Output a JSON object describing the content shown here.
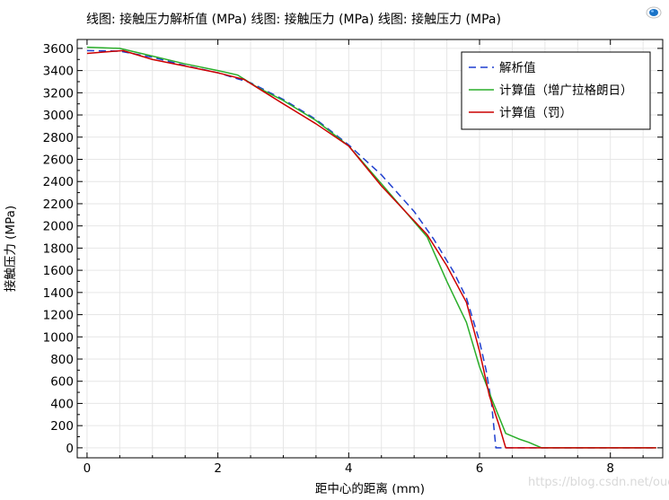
{
  "title": "线图: 接触压力解析值 (MPa)  线图: 接触压力 (MPa)  线图: 接触压力 (MPa)",
  "watermark": "https://blog.csdn.net/ouening",
  "colors": {
    "analytic": "#1f3fcf",
    "lagrange": "#2aae2a",
    "penalty": "#cc0000",
    "grid": "#e6e6e6",
    "logo": "#1a73c7"
  },
  "logo_icon": "comsol-logo-icon",
  "chart_data": {
    "type": "line",
    "title": "",
    "xlabel": "距中心的距离 (mm)",
    "ylabel": "接触压力 (MPa)",
    "xlim": [
      -0.15,
      8.8
    ],
    "ylim": [
      -90,
      3680
    ],
    "xticks": [
      0,
      2,
      4,
      6,
      8
    ],
    "yticks": [
      0,
      200,
      400,
      600,
      800,
      1000,
      1200,
      1400,
      1600,
      1800,
      2000,
      2200,
      2400,
      2600,
      2800,
      3000,
      3200,
      3400,
      3600
    ],
    "grid": true,
    "legend_position": "top-right",
    "series": [
      {
        "name": "解析值",
        "style": "dashed",
        "x": [
          0,
          0.5,
          1.0,
          1.5,
          2.0,
          2.5,
          3.0,
          3.5,
          4.0,
          4.5,
          5.0,
          5.3,
          5.6,
          5.8,
          6.0,
          6.1,
          6.18,
          6.22,
          6.25,
          6.3,
          8.7
        ],
        "y": [
          3580,
          3575,
          3520,
          3445,
          3380,
          3290,
          3140,
          2960,
          2730,
          2460,
          2130,
          1880,
          1590,
          1350,
          960,
          700,
          420,
          180,
          0,
          0,
          0
        ]
      },
      {
        "name": "计算值（增广拉格朗日）",
        "style": "solid",
        "x": [
          0,
          0.5,
          1.0,
          1.5,
          2.0,
          2.3,
          2.6,
          3.0,
          3.5,
          4.0,
          4.5,
          5.2,
          5.5,
          5.8,
          6.0,
          6.2,
          6.4,
          6.6,
          6.75,
          6.95,
          8.7
        ],
        "y": [
          3610,
          3600,
          3530,
          3460,
          3400,
          3360,
          3250,
          3130,
          2950,
          2720,
          2380,
          1900,
          1500,
          1130,
          730,
          420,
          130,
          80,
          50,
          0,
          0
        ]
      },
      {
        "name": "计算值（罚）",
        "style": "solid",
        "x": [
          0,
          0.55,
          1.0,
          1.5,
          2.0,
          2.4,
          3.0,
          3.5,
          4.0,
          4.5,
          5.2,
          5.5,
          5.8,
          6.0,
          6.15,
          6.3,
          6.4,
          8.7
        ],
        "y": [
          3555,
          3580,
          3500,
          3440,
          3380,
          3320,
          3100,
          2920,
          2720,
          2360,
          1920,
          1640,
          1310,
          870,
          470,
          200,
          0,
          0
        ]
      }
    ]
  }
}
